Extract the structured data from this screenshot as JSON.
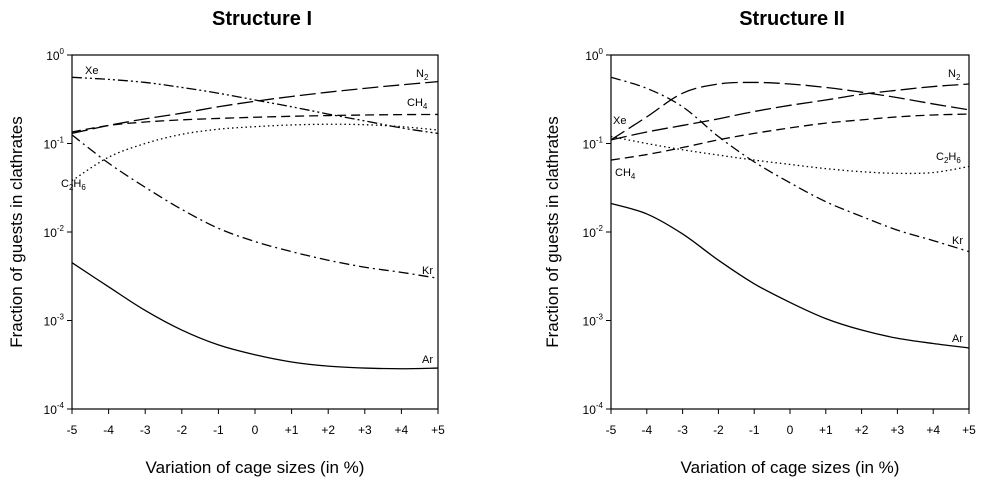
{
  "chart_data": [
    {
      "type": "line",
      "title": "Structure I",
      "xlabel": "Variation of cage sizes (in %)",
      "ylabel": "Fraction of guests in clathrates",
      "yscale": "log",
      "ylim": [
        0.0001,
        1
      ],
      "xlim": [
        -5,
        5
      ],
      "x": [
        -5,
        -4,
        -3,
        -2,
        -1,
        0,
        1,
        2,
        3,
        4,
        5
      ],
      "xtick_labels": [
        "-5",
        "-4",
        "-3",
        "-2",
        "-1",
        "0",
        "+1",
        "+2",
        "+3",
        "+4",
        "+5"
      ],
      "ytick_labels": [
        {
          "base": "10",
          "exp": "0"
        },
        {
          "base": "10",
          "exp": "-1"
        },
        {
          "base": "10",
          "exp": "-2"
        },
        {
          "base": "10",
          "exp": "-3"
        },
        {
          "base": "10",
          "exp": "-4"
        }
      ],
      "series": [
        {
          "name": "Xe",
          "label": {
            "main": "Xe",
            "sub": ""
          },
          "dash": "dashdotdot",
          "values": [
            0.56,
            0.53,
            0.49,
            0.43,
            0.37,
            0.31,
            0.26,
            0.215,
            0.18,
            0.15,
            0.13
          ]
        },
        {
          "name": "N2",
          "label": {
            "main": "N",
            "sub": "2"
          },
          "dash": "longdash",
          "values": [
            0.13,
            0.16,
            0.19,
            0.22,
            0.26,
            0.3,
            0.34,
            0.38,
            0.42,
            0.46,
            0.5
          ]
        },
        {
          "name": "CH4",
          "label": {
            "main": "CH",
            "sub": "4"
          },
          "dash": "dash",
          "values": [
            0.135,
            0.16,
            0.175,
            0.185,
            0.192,
            0.198,
            0.203,
            0.207,
            0.21,
            0.212,
            0.213
          ]
        },
        {
          "name": "C2H6",
          "label": {
            "main": "C",
            "sub": "2",
            "main2": "H",
            "sub2": "6"
          },
          "dash": "dot",
          "values": [
            0.038,
            0.07,
            0.1,
            0.127,
            0.145,
            0.155,
            0.162,
            0.165,
            0.163,
            0.155,
            0.142
          ]
        },
        {
          "name": "Kr",
          "label": {
            "main": "Kr",
            "sub": ""
          },
          "dash": "dashdot",
          "values": [
            0.125,
            0.06,
            0.032,
            0.018,
            0.011,
            0.0078,
            0.006,
            0.0048,
            0.004,
            0.0035,
            0.003
          ]
        },
        {
          "name": "Ar",
          "label": {
            "main": "Ar",
            "sub": ""
          },
          "dash": "solid",
          "values": [
            0.0045,
            0.0024,
            0.0013,
            0.00078,
            0.00053,
            0.00041,
            0.00034,
            0.000305,
            0.00029,
            0.000285,
            0.00029
          ]
        }
      ]
    },
    {
      "type": "line",
      "title": "Structure II",
      "xlabel": "Variation of cage sizes (in %)",
      "ylabel": "Fraction of guests in clathrates",
      "yscale": "log",
      "ylim": [
        0.0001,
        1
      ],
      "xlim": [
        -5,
        5
      ],
      "x": [
        -5,
        -4,
        -3,
        -2,
        -1,
        0,
        1,
        2,
        3,
        4,
        5
      ],
      "xtick_labels": [
        "-5",
        "-4",
        "-3",
        "-2",
        "-1",
        "0",
        "+1",
        "+2",
        "+3",
        "+4",
        "+5"
      ],
      "ytick_labels": [
        {
          "base": "10",
          "exp": "0"
        },
        {
          "base": "10",
          "exp": "-1"
        },
        {
          "base": "10",
          "exp": "-2"
        },
        {
          "base": "10",
          "exp": "-3"
        },
        {
          "base": "10",
          "exp": "-4"
        }
      ],
      "series": [
        {
          "name": "Xe",
          "label": {
            "main": "Xe",
            "sub": ""
          },
          "dash": "longdash",
          "values": [
            0.11,
            0.2,
            0.37,
            0.47,
            0.49,
            0.47,
            0.43,
            0.38,
            0.33,
            0.28,
            0.24
          ]
        },
        {
          "name": "N2",
          "label": {
            "main": "N",
            "sub": "2"
          },
          "dash": "longdash",
          "values": [
            0.11,
            0.135,
            0.16,
            0.19,
            0.23,
            0.27,
            0.31,
            0.36,
            0.4,
            0.44,
            0.47
          ]
        },
        {
          "name": "CH4",
          "label": {
            "main": "CH",
            "sub": "4"
          },
          "dash": "dash",
          "values": [
            0.065,
            0.075,
            0.09,
            0.11,
            0.13,
            0.15,
            0.17,
            0.185,
            0.2,
            0.21,
            0.215
          ]
        },
        {
          "name": "C2H6",
          "label": {
            "main": "C",
            "sub": "2",
            "main2": "H",
            "sub2": "6"
          },
          "dash": "dot",
          "values": [
            0.12,
            0.1,
            0.085,
            0.074,
            0.065,
            0.058,
            0.052,
            0.048,
            0.046,
            0.047,
            0.055
          ]
        },
        {
          "name": "Kr",
          "label": {
            "main": "Kr",
            "sub": ""
          },
          "dash": "dashdot",
          "values": [
            0.56,
            0.42,
            0.26,
            0.12,
            0.062,
            0.036,
            0.022,
            0.015,
            0.0105,
            0.008,
            0.006
          ]
        },
        {
          "name": "Ar",
          "label": {
            "main": "Ar",
            "sub": ""
          },
          "dash": "solid",
          "values": [
            0.021,
            0.016,
            0.0095,
            0.0048,
            0.0026,
            0.0016,
            0.00105,
            0.00078,
            0.00063,
            0.00055,
            0.00049
          ]
        }
      ]
    }
  ]
}
